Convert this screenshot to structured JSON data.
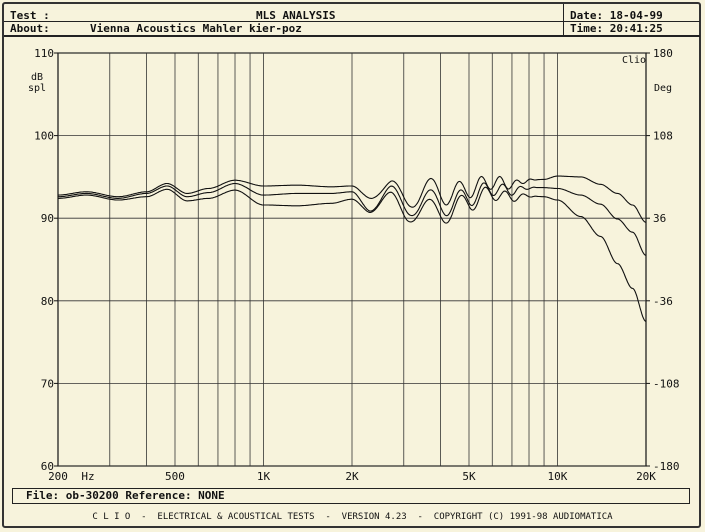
{
  "header": {
    "test_label": "Test :",
    "title": "MLS ANALYSIS",
    "date_label": "Date: 18-04-99",
    "about_label": "About:",
    "about_value": "Vienna Acoustics Mahler kier-poz",
    "time_label": "Time: 20:41:25"
  },
  "footer": {
    "file_text": "File: ob-30200 Reference: NONE",
    "bottom_text": "C L I O  -  ELECTRICAL & ACOUSTICAL TESTS  -  VERSION 4.23  -  COPYRIGHT (C) 1991-98 AUDIOMATICA"
  },
  "chart_data": {
    "type": "line",
    "xscale": "log",
    "xlim": [
      200,
      20000
    ],
    "ylim": [
      60,
      110
    ],
    "y2lim": [
      -180,
      180
    ],
    "grid": true,
    "ylabel": "dB spl",
    "y2label": "Deg",
    "corner_label": "Clio",
    "x_ticks": [
      {
        "v": 200,
        "label": "200"
      },
      {
        "v": 500,
        "label": "500"
      },
      {
        "v": 1000,
        "label": "1K"
      },
      {
        "v": 2000,
        "label": "2K"
      },
      {
        "v": 5000,
        "label": "5K"
      },
      {
        "v": 10000,
        "label": "10K"
      },
      {
        "v": 20000,
        "label": "20K"
      }
    ],
    "x_unit": "Hz",
    "y_ticks": [
      110,
      100,
      90,
      80,
      70,
      60
    ],
    "y2_ticks": [
      "180",
      "108",
      "36",
      "-36",
      "-108",
      "-180"
    ],
    "series": [
      {
        "x": [
          200,
          250,
          320,
          400,
          470,
          550,
          650,
          800,
          1000,
          1300,
          1700,
          2000,
          2300,
          2700,
          3100,
          3600,
          4200,
          5000,
          6000,
          7000,
          8000,
          9000,
          10000,
          12000,
          14000,
          16000,
          18000,
          20000
        ],
        "y": [
          92.8,
          93.2,
          92.6,
          93.2,
          94.2,
          93.0,
          93.6,
          94.6,
          93.9,
          94.0,
          93.8,
          93.9,
          92.5,
          94.2,
          91.8,
          93.8,
          92.8,
          93.6,
          94.4,
          94.1,
          94.6,
          94.7,
          95.1,
          95.0,
          94.1,
          93.0,
          91.6,
          89.5
        ]
      },
      {
        "x": [
          200,
          250,
          320,
          400,
          470,
          550,
          650,
          800,
          1000,
          1300,
          1700,
          2000,
          2300,
          2700,
          3100,
          3600,
          4200,
          5000,
          6000,
          7000,
          8000,
          9000,
          10000,
          12000,
          14000,
          16000,
          18000,
          20000
        ],
        "y": [
          92.6,
          93.0,
          92.4,
          93.0,
          93.9,
          92.6,
          93.1,
          94.2,
          92.8,
          93.0,
          93.0,
          93.2,
          91.0,
          93.4,
          91.0,
          92.4,
          91.5,
          92.6,
          93.6,
          93.3,
          93.7,
          93.7,
          93.6,
          92.8,
          91.7,
          89.9,
          88.3,
          85.5
        ]
      },
      {
        "x": [
          200,
          250,
          320,
          400,
          470,
          550,
          650,
          800,
          1000,
          1300,
          1700,
          2000,
          2300,
          2700,
          3100,
          3600,
          4200,
          5000,
          6000,
          7000,
          8000,
          9000,
          10000,
          12000,
          14000,
          16000,
          18000,
          20000
        ],
        "y": [
          92.4,
          92.8,
          92.2,
          92.6,
          93.5,
          92.1,
          92.4,
          93.4,
          91.6,
          91.5,
          91.8,
          92.3,
          90.8,
          92.6,
          90.4,
          91.2,
          90.6,
          92.0,
          93.0,
          92.5,
          92.7,
          92.6,
          92.2,
          90.2,
          87.8,
          84.5,
          81.5,
          77.5
        ]
      }
    ]
  }
}
